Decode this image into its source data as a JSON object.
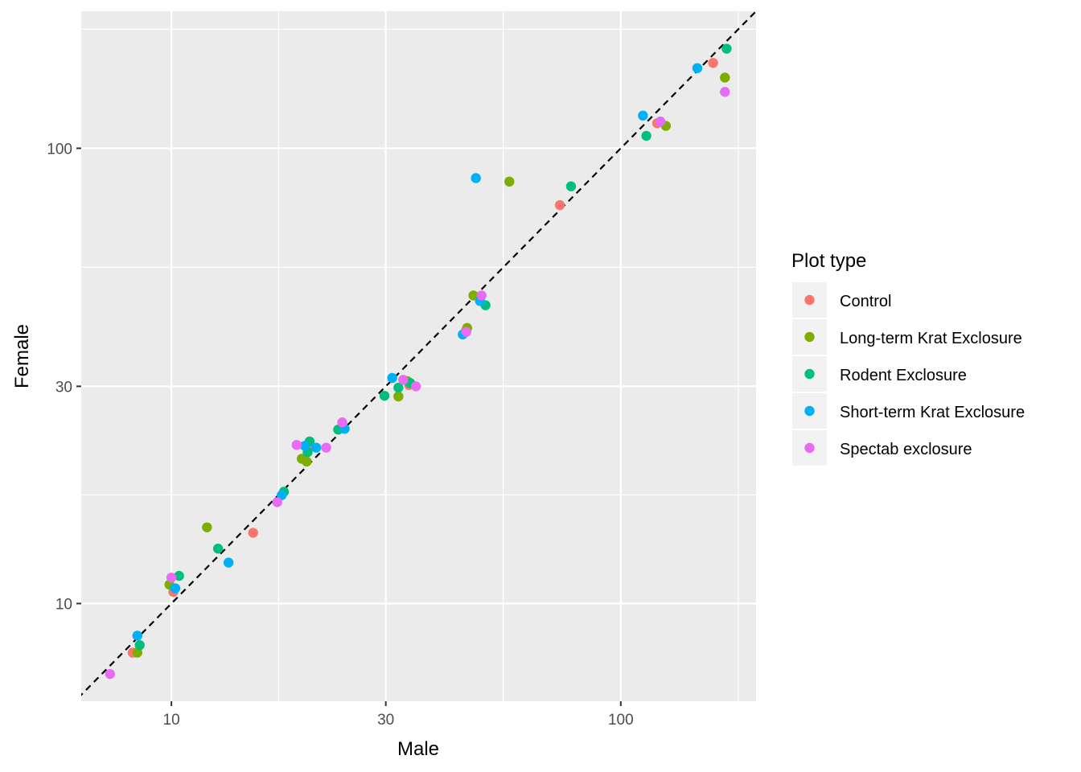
{
  "chart_data": {
    "type": "scatter",
    "title": "",
    "xlabel": "Male",
    "ylabel": "Female",
    "x_scale": "log10",
    "y_scale": "log10",
    "xlim": [
      6.3,
      200
    ],
    "ylim": [
      6.1,
      200
    ],
    "x_ticks": [
      10,
      30,
      100
    ],
    "y_ticks": [
      10,
      30,
      100
    ],
    "grid": true,
    "reference_line": {
      "type": "identity",
      "style": "dashed",
      "color": "#000000"
    },
    "legend": {
      "title": "Plot type",
      "position": "right"
    },
    "series": [
      {
        "name": "Control",
        "color": "#F8766D",
        "points": [
          [
            8.2,
            7.8
          ],
          [
            10.1,
            10.6
          ],
          [
            15.2,
            14.3
          ],
          [
            20.2,
            22.2
          ],
          [
            33.8,
            30.2
          ],
          [
            45.2,
            39.7
          ],
          [
            73.2,
            75.0
          ],
          [
            120.5,
            113.5
          ],
          [
            160.5,
            154.0
          ]
        ]
      },
      {
        "name": "Long-term Krat Exclosure",
        "color": "#7CAE00",
        "points": [
          [
            8.4,
            7.8
          ],
          [
            9.9,
            11.0
          ],
          [
            12.0,
            14.7
          ],
          [
            19.5,
            20.8
          ],
          [
            20.0,
            20.5
          ],
          [
            32.0,
            28.5
          ],
          [
            33.5,
            30.8
          ],
          [
            45.5,
            40.3
          ],
          [
            47.0,
            47.5
          ],
          [
            56.5,
            84.5
          ],
          [
            126.0,
            112.0
          ],
          [
            170.5,
            143.0
          ]
        ]
      },
      {
        "name": "Rodent Exclosure",
        "color": "#00BF7D",
        "points": [
          [
            8.5,
            8.1
          ],
          [
            10.4,
            11.5
          ],
          [
            12.7,
            13.2
          ],
          [
            17.8,
            17.6
          ],
          [
            20.1,
            21.5
          ],
          [
            20.3,
            22.7
          ],
          [
            23.5,
            24.1
          ],
          [
            29.8,
            28.6
          ],
          [
            32.0,
            29.8
          ],
          [
            34.0,
            30.5
          ],
          [
            50.0,
            45.2
          ],
          [
            77.5,
            82.5
          ],
          [
            114.0,
            106.5
          ],
          [
            172.0,
            165.5
          ]
        ]
      },
      {
        "name": "Short-term Krat Exclosure",
        "color": "#00B0F6",
        "points": [
          [
            8.4,
            8.5
          ],
          [
            10.2,
            10.8
          ],
          [
            13.4,
            12.3
          ],
          [
            17.6,
            17.3
          ],
          [
            19.8,
            22.2
          ],
          [
            21.0,
            22.0
          ],
          [
            24.3,
            24.2
          ],
          [
            31.0,
            31.3
          ],
          [
            44.5,
            39.0
          ],
          [
            47.6,
            86.0
          ],
          [
            48.6,
            46.2
          ],
          [
            112.0,
            118.0
          ],
          [
            148.0,
            150.0
          ]
        ]
      },
      {
        "name": "Spectab exclosure",
        "color": "#E76BF3",
        "points": [
          [
            7.3,
            7.0
          ],
          [
            10.0,
            11.4
          ],
          [
            17.2,
            16.7
          ],
          [
            19.0,
            22.3
          ],
          [
            22.1,
            22.0
          ],
          [
            24.0,
            25.0
          ],
          [
            32.8,
            31.0
          ],
          [
            35.0,
            30.0
          ],
          [
            45.3,
            39.5
          ],
          [
            49.0,
            47.5
          ],
          [
            122.5,
            114.5
          ],
          [
            170.5,
            133.0
          ]
        ]
      }
    ]
  }
}
